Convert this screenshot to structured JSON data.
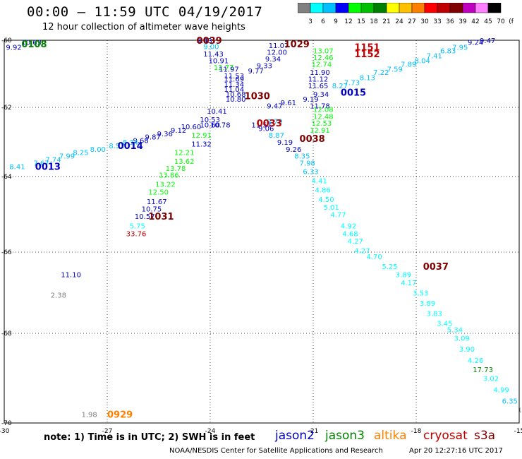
{
  "title": "00:00 – 11:59 UTC 04/19/2017",
  "subtitle": "12 hour collection of altimeter wave heights",
  "colorbar": {
    "labels": [
      "3",
      "6",
      "9",
      "12",
      "15",
      "18",
      "21",
      "24",
      "27",
      "30",
      "33",
      "36",
      "39",
      "42",
      "45",
      "70",
      "(ft)"
    ],
    "colors": [
      "#808080",
      "#00ffff",
      "#00c0ff",
      "#0000ff",
      "#00ff00",
      "#00c000",
      "#008000",
      "#ffff00",
      "#ffc000",
      "#ff8000",
      "#ff0000",
      "#c00000",
      "#800000",
      "#c000c0",
      "#ff80ff",
      "#000000"
    ]
  },
  "axes": {
    "x_ticks": [
      "-30",
      "-27",
      "-24",
      "-21",
      "-18",
      "-15"
    ],
    "y_ticks": [
      "-60",
      "-62",
      "-64",
      "-66",
      "-68",
      "-70"
    ]
  },
  "footer": {
    "note": "note: 1) Time is in UTC; 2) SWH is in feet",
    "credit": "NOAA/NESDIS Center for Satellite Applications and Research",
    "stamp": "Apr 20 12:27:16 UTC 2017"
  },
  "legend": [
    {
      "name": "jason2",
      "color": "#0000c0"
    },
    {
      "name": "jason3",
      "color": "#008000"
    },
    {
      "name": "altika",
      "color": "#ff8000"
    },
    {
      "name": "cryosat",
      "color": "#c00000"
    },
    {
      "name": "s3a",
      "color": "#800000"
    }
  ],
  "chart_data": {
    "type": "scatter",
    "xlim": [
      -30,
      -15
    ],
    "ylim": [
      -70,
      -60
    ],
    "grid": true,
    "time_labels": [
      {
        "t": "0108",
        "lon": -29.5,
        "lat": -60.1,
        "color": "#008000"
      },
      {
        "t": "0039",
        "lon": -24.4,
        "lat": -59.95,
        "color": "#800000"
      },
      {
        "t": "1029",
        "lon": -21.85,
        "lat": -60.1,
        "color": "#800000"
      },
      {
        "t": "1151",
        "lon": -19.8,
        "lat": -60.2,
        "color": "#c00000"
      },
      {
        "t": "1152",
        "lon": -19.8,
        "lat": -60.4,
        "color": "#c00000"
      },
      {
        "t": "1030",
        "lon": -23.0,
        "lat": -61.65,
        "color": "#800000"
      },
      {
        "t": "0015",
        "lon": -20.2,
        "lat": -61.55,
        "color": "#0000c0"
      },
      {
        "t": "0033",
        "lon": -22.65,
        "lat": -62.45,
        "color": "#c00000"
      },
      {
        "t": "0038",
        "lon": -21.4,
        "lat": -62.9,
        "color": "#800000"
      },
      {
        "t": "0014",
        "lon": -26.7,
        "lat": -63.1,
        "color": "#0000c0"
      },
      {
        "t": "0013",
        "lon": -29.1,
        "lat": -63.7,
        "color": "#0000c0"
      },
      {
        "t": "1031",
        "lon": -25.8,
        "lat": -65.05,
        "color": "#800000"
      },
      {
        "t": "0037",
        "lon": -17.8,
        "lat": -66.35,
        "color": "#800000"
      },
      {
        "t": "0929",
        "lon": -27.0,
        "lat": -69.8,
        "color": "#ff8000"
      }
    ],
    "points": [
      {
        "v": "9.92",
        "lon": -29.95,
        "lat": -60.2,
        "color": "#0000c0"
      },
      {
        "v": "10.63",
        "lon": -29.5,
        "lat": -60.05,
        "color": "#0000c0"
      },
      {
        "v": "9.43",
        "lon": -24.4,
        "lat": -59.98,
        "color": "#0000c0"
      },
      {
        "v": "9.00",
        "lon": -24.2,
        "lat": -60.18,
        "color": "#00c0ff"
      },
      {
        "v": "11.43",
        "lon": -24.2,
        "lat": -60.4,
        "color": "#0000c0"
      },
      {
        "v": "10.91",
        "lon": -24.05,
        "lat": -60.6,
        "color": "#0000c0"
      },
      {
        "v": "12.77",
        "lon": -23.9,
        "lat": -60.8,
        "color": "#00ff00"
      },
      {
        "v": "11.97",
        "lon": -23.75,
        "lat": -60.85,
        "color": "#0000c0"
      },
      {
        "v": "11.53",
        "lon": -23.6,
        "lat": -61.05,
        "color": "#0000c0"
      },
      {
        "v": "11.69",
        "lon": -23.6,
        "lat": -61.15,
        "color": "#0000c0"
      },
      {
        "v": "11.34",
        "lon": -23.6,
        "lat": -61.3,
        "color": "#0000c0"
      },
      {
        "v": "11.04",
        "lon": -23.6,
        "lat": -61.45,
        "color": "#0000c0"
      },
      {
        "v": "10.68",
        "lon": -23.55,
        "lat": -61.6,
        "color": "#0000c0"
      },
      {
        "v": "10.80",
        "lon": -23.55,
        "lat": -61.75,
        "color": "#0000c0"
      },
      {
        "v": "10.41",
        "lon": -24.1,
        "lat": -62.1,
        "color": "#0000c0"
      },
      {
        "v": "10.53",
        "lon": -24.3,
        "lat": -62.35,
        "color": "#0000c0"
      },
      {
        "v": "10.78",
        "lon": -24.0,
        "lat": -62.5,
        "color": "#0000c0"
      },
      {
        "v": "10.60",
        "lon": -24.3,
        "lat": -62.5,
        "color": "#0000c0"
      },
      {
        "v": "11.57",
        "lon": -22.8,
        "lat": -62.5,
        "color": "#0000c0"
      },
      {
        "v": "9.77",
        "lon": -22.9,
        "lat": -60.9,
        "color": "#0000c0"
      },
      {
        "v": "9.33",
        "lon": -22.65,
        "lat": -60.75,
        "color": "#0000c0"
      },
      {
        "v": "9.34",
        "lon": -22.4,
        "lat": -60.55,
        "color": "#0000c0"
      },
      {
        "v": "12.00",
        "lon": -22.35,
        "lat": -60.35,
        "color": "#0000c0"
      },
      {
        "v": "11.07",
        "lon": -22.3,
        "lat": -60.15,
        "color": "#0000c0"
      },
      {
        "v": "9.47",
        "lon": -22.35,
        "lat": -61.95,
        "color": "#0000c0"
      },
      {
        "v": "9.61",
        "lon": -21.95,
        "lat": -61.85,
        "color": "#0000c0"
      },
      {
        "v": "9.19",
        "lon": -21.3,
        "lat": -61.75,
        "color": "#0000c0"
      },
      {
        "v": "9.34",
        "lon": -21.0,
        "lat": -61.6,
        "color": "#0000c0"
      },
      {
        "v": "9.06",
        "lon": -22.6,
        "lat": -62.6,
        "color": "#0000c0"
      },
      {
        "v": "8.79",
        "lon": -22.35,
        "lat": -62.4,
        "color": "#00c0ff"
      },
      {
        "v": "8.87",
        "lon": -22.3,
        "lat": -62.8,
        "color": "#00c0ff"
      },
      {
        "v": "9.19",
        "lon": -22.05,
        "lat": -63.0,
        "color": "#0000c0"
      },
      {
        "v": "9.26",
        "lon": -21.8,
        "lat": -63.2,
        "color": "#0000c0"
      },
      {
        "v": "8.35",
        "lon": -21.55,
        "lat": -63.4,
        "color": "#00c0ff"
      },
      {
        "v": "7.98",
        "lon": -21.4,
        "lat": -63.6,
        "color": "#00c0ff"
      },
      {
        "v": "6.33",
        "lon": -21.3,
        "lat": -63.85,
        "color": "#00c0ff"
      },
      {
        "v": "4.41",
        "lon": -21.05,
        "lat": -64.1,
        "color": "#00ffff"
      },
      {
        "v": "4.86",
        "lon": -20.95,
        "lat": -64.35,
        "color": "#00ffff"
      },
      {
        "v": "4.50",
        "lon": -20.85,
        "lat": -64.6,
        "color": "#00ffff"
      },
      {
        "v": "5.01",
        "lon": -20.7,
        "lat": -64.8,
        "color": "#00ffff"
      },
      {
        "v": "4.77",
        "lon": -20.5,
        "lat": -65.0,
        "color": "#00ffff"
      },
      {
        "v": "4.92",
        "lon": -20.2,
        "lat": -65.3,
        "color": "#00ffff"
      },
      {
        "v": "4.68",
        "lon": -20.15,
        "lat": -65.5,
        "color": "#00ffff"
      },
      {
        "v": "4.27",
        "lon": -20.0,
        "lat": -65.7,
        "color": "#00ffff"
      },
      {
        "v": "4.27",
        "lon": -19.8,
        "lat": -65.95,
        "color": "#00ffff"
      },
      {
        "v": "4.70",
        "lon": -19.45,
        "lat": -66.1,
        "color": "#00ffff"
      },
      {
        "v": "5.25",
        "lon": -19.0,
        "lat": -66.35,
        "color": "#00ffff"
      },
      {
        "v": "3.89",
        "lon": -18.6,
        "lat": -66.55,
        "color": "#00ffff"
      },
      {
        "v": "4.17",
        "lon": -18.45,
        "lat": -66.75,
        "color": "#00ffff"
      },
      {
        "v": "3.53",
        "lon": -18.1,
        "lat": -67.0,
        "color": "#00ffff"
      },
      {
        "v": "3.89",
        "lon": -17.9,
        "lat": -67.25,
        "color": "#00ffff"
      },
      {
        "v": "3.83",
        "lon": -17.7,
        "lat": -67.5,
        "color": "#00ffff"
      },
      {
        "v": "3.45",
        "lon": -17.4,
        "lat": -67.75,
        "color": "#00ffff"
      },
      {
        "v": "5.34",
        "lon": -17.1,
        "lat": -67.9,
        "color": "#00ffff"
      },
      {
        "v": "3.09",
        "lon": -16.9,
        "lat": -68.1,
        "color": "#00ffff"
      },
      {
        "v": "3.90",
        "lon": -16.75,
        "lat": -68.35,
        "color": "#00ffff"
      },
      {
        "v": "4.26",
        "lon": -16.5,
        "lat": -68.6,
        "color": "#00ffff"
      },
      {
        "v": "17.73",
        "lon": -16.35,
        "lat": -68.8,
        "color": "#008000"
      },
      {
        "v": "3.02",
        "lon": -16.05,
        "lat": -69.0,
        "color": "#00ffff"
      },
      {
        "v": "4.99",
        "lon": -15.75,
        "lat": -69.25,
        "color": "#00ffff"
      },
      {
        "v": "6.35",
        "lon": -15.5,
        "lat": -69.5,
        "color": "#00c0ff"
      },
      {
        "v": "1.8",
        "lon": -15.05,
        "lat": -69.7,
        "color": "#808080"
      },
      {
        "v": "13.07",
        "lon": -21.0,
        "lat": -60.3,
        "color": "#00ff00"
      },
      {
        "v": "12.46",
        "lon": -21.0,
        "lat": -60.5,
        "color": "#00ff00"
      },
      {
        "v": "12.74",
        "lon": -21.05,
        "lat": -60.7,
        "color": "#00ff00"
      },
      {
        "v": "11.90",
        "lon": -21.1,
        "lat": -60.95,
        "color": "#0000c0"
      },
      {
        "v": "11.12",
        "lon": -21.15,
        "lat": -61.15,
        "color": "#0000c0"
      },
      {
        "v": "11.65",
        "lon": -21.15,
        "lat": -61.35,
        "color": "#0000c0"
      },
      {
        "v": "11.78",
        "lon": -21.1,
        "lat": -61.95,
        "color": "#0000c0"
      },
      {
        "v": "12.08",
        "lon": -21.0,
        "lat": -62.05,
        "color": "#00ff00"
      },
      {
        "v": "12.48",
        "lon": -21.0,
        "lat": -62.25,
        "color": "#00ff00"
      },
      {
        "v": "12.53",
        "lon": -21.05,
        "lat": -62.45,
        "color": "#00ff00"
      },
      {
        "v": "12.91",
        "lon": -21.1,
        "lat": -62.65,
        "color": "#00ff00"
      },
      {
        "v": "8.27",
        "lon": -20.45,
        "lat": -61.35,
        "color": "#00c0ff"
      },
      {
        "v": "7.73",
        "lon": -20.1,
        "lat": -61.25,
        "color": "#00c0ff"
      },
      {
        "v": "8.13",
        "lon": -19.65,
        "lat": -61.1,
        "color": "#00c0ff"
      },
      {
        "v": "7.22",
        "lon": -19.25,
        "lat": -60.95,
        "color": "#00c0ff"
      },
      {
        "v": "7.59",
        "lon": -18.85,
        "lat": -60.85,
        "color": "#00c0ff"
      },
      {
        "v": "7.89",
        "lon": -18.45,
        "lat": -60.7,
        "color": "#00c0ff"
      },
      {
        "v": "8.04",
        "lon": -18.05,
        "lat": -60.6,
        "color": "#00c0ff"
      },
      {
        "v": "7.41",
        "lon": -17.7,
        "lat": -60.45,
        "color": "#00c0ff"
      },
      {
        "v": "6.83",
        "lon": -17.3,
        "lat": -60.3,
        "color": "#00c0ff"
      },
      {
        "v": "7.95",
        "lon": -16.95,
        "lat": -60.2,
        "color": "#00c0ff"
      },
      {
        "v": "9.24",
        "lon": -16.5,
        "lat": -60.05,
        "color": "#0000c0"
      },
      {
        "v": "9.47",
        "lon": -16.15,
        "lat": -59.98,
        "color": "#0000c0"
      },
      {
        "v": "10.60",
        "lon": -24.85,
        "lat": -62.55,
        "color": "#0000c0"
      },
      {
        "v": "9.12",
        "lon": -25.15,
        "lat": -62.65,
        "color": "#0000c0"
      },
      {
        "v": "9.36",
        "lon": -25.55,
        "lat": -62.75,
        "color": "#0000c0"
      },
      {
        "v": "9.87",
        "lon": -25.9,
        "lat": -62.85,
        "color": "#0000c0"
      },
      {
        "v": "9.68",
        "lon": -26.25,
        "lat": -62.95,
        "color": "#0000c0"
      },
      {
        "v": "8.34",
        "lon": -26.55,
        "lat": -63.0,
        "color": "#00c0ff"
      },
      {
        "v": "8.52",
        "lon": -26.95,
        "lat": -63.1,
        "color": "#00c0ff"
      },
      {
        "v": "8.00",
        "lon": -27.5,
        "lat": -63.2,
        "color": "#00c0ff"
      },
      {
        "v": "8.25",
        "lon": -28.0,
        "lat": -63.3,
        "color": "#00c0ff"
      },
      {
        "v": "7.99",
        "lon": -28.4,
        "lat": -63.4,
        "color": "#00c0ff"
      },
      {
        "v": "7.74",
        "lon": -28.8,
        "lat": -63.5,
        "color": "#00c0ff"
      },
      {
        "v": "7.67",
        "lon": -29.15,
        "lat": -63.6,
        "color": "#00c0ff"
      },
      {
        "v": "8.41",
        "lon": -29.85,
        "lat": -63.7,
        "color": "#00c0ff"
      },
      {
        "v": "12.91",
        "lon": -24.55,
        "lat": -62.8,
        "color": "#00ff00"
      },
      {
        "v": "11.32",
        "lon": -24.55,
        "lat": -63.05,
        "color": "#0000c0"
      },
      {
        "v": "12.21",
        "lon": -25.05,
        "lat": -63.3,
        "color": "#00ff00"
      },
      {
        "v": "13.62",
        "lon": -25.05,
        "lat": -63.55,
        "color": "#00ff00"
      },
      {
        "v": "13.78",
        "lon": -25.3,
        "lat": -63.75,
        "color": "#00ff00"
      },
      {
        "v": "13.86",
        "lon": -25.5,
        "lat": -63.95,
        "color": "#00ff00"
      },
      {
        "v": "13.22",
        "lon": -25.6,
        "lat": -64.2,
        "color": "#00ff00"
      },
      {
        "v": "12.50",
        "lon": -25.8,
        "lat": -64.4,
        "color": "#00ff00"
      },
      {
        "v": "11.67",
        "lon": -25.85,
        "lat": -64.65,
        "color": "#0000c0"
      },
      {
        "v": "10.75",
        "lon": -26.0,
        "lat": -64.85,
        "color": "#0000c0"
      },
      {
        "v": "10.57",
        "lon": -26.2,
        "lat": -65.05,
        "color": "#0000c0"
      },
      {
        "v": "5.75",
        "lon": -26.35,
        "lat": -65.3,
        "color": "#00ffff"
      },
      {
        "v": "33.76",
        "lon": -26.45,
        "lat": -65.5,
        "color": "#c00000"
      },
      {
        "v": "11.10",
        "lon": -28.35,
        "lat": -66.55,
        "color": "#0000c0"
      },
      {
        "v": "2.38",
        "lon": -28.65,
        "lat": -67.05,
        "color": "#808080"
      },
      {
        "v": "1.98",
        "lon": -27.75,
        "lat": -69.8,
        "color": "#808080"
      }
    ]
  }
}
